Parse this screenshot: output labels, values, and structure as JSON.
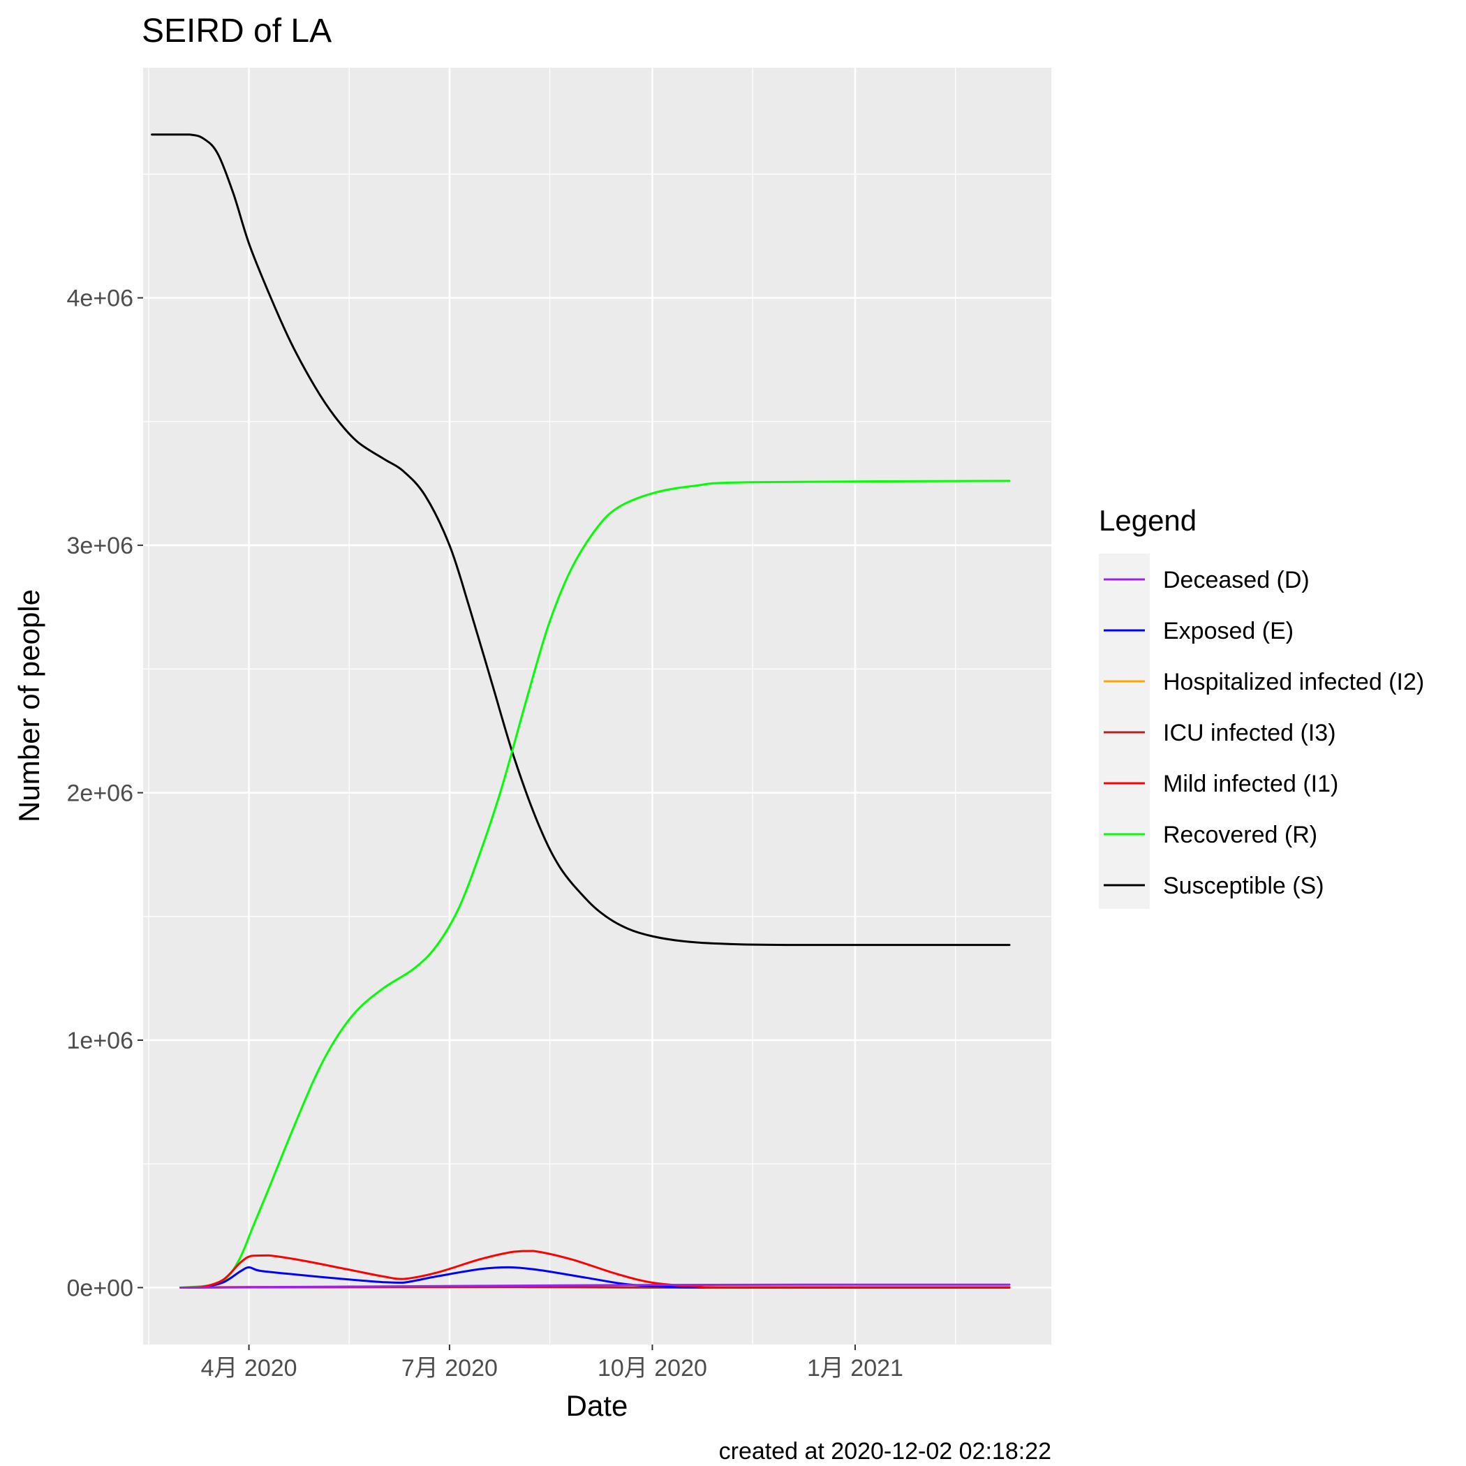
{
  "chart_data": {
    "type": "line",
    "title": "SEIRD of LA",
    "xlabel": "Date",
    "ylabel": "Number of people",
    "caption": "created at 2020-12-02 02:18:22",
    "x_ticks": [
      {
        "date": "2020-04-01",
        "label": "4月 2020"
      },
      {
        "date": "2020-07-01",
        "label": "7月 2020"
      },
      {
        "date": "2020-10-01",
        "label": "10月 2020"
      },
      {
        "date": "2021-01-01",
        "label": "1月 2021"
      }
    ],
    "xlim": [
      "2020-02-13",
      "2021-03-31"
    ],
    "y_ticks": [
      {
        "value": 0,
        "label": "0e+00"
      },
      {
        "value": 1000000,
        "label": "1e+06"
      },
      {
        "value": 2000000,
        "label": "2e+06"
      },
      {
        "value": 3000000,
        "label": "3e+06"
      },
      {
        "value": 4000000,
        "label": "4e+06"
      }
    ],
    "ylim": [
      -230000,
      4930000
    ],
    "grid": true,
    "legend": {
      "title": "Legend",
      "position": "right"
    },
    "series": [
      {
        "name": "Deceased (D)",
        "color": "#A020F0",
        "points": [
          [
            "2020-03-01",
            0
          ],
          [
            "2020-04-01",
            2000
          ],
          [
            "2020-06-01",
            5000
          ],
          [
            "2020-08-01",
            8000
          ],
          [
            "2020-10-01",
            11000
          ],
          [
            "2021-01-01",
            12000
          ],
          [
            "2021-03-12",
            12000
          ]
        ]
      },
      {
        "name": "Exposed (E)",
        "color": "#0000FF",
        "points": [
          [
            "2020-03-01",
            0
          ],
          [
            "2020-03-10",
            1000
          ],
          [
            "2020-03-20",
            20000
          ],
          [
            "2020-03-28",
            65000
          ],
          [
            "2020-04-01",
            82000
          ],
          [
            "2020-04-06",
            68000
          ],
          [
            "2020-04-20",
            55000
          ],
          [
            "2020-05-10",
            38000
          ],
          [
            "2020-06-01",
            22000
          ],
          [
            "2020-06-10",
            20000
          ],
          [
            "2020-06-25",
            45000
          ],
          [
            "2020-07-15",
            75000
          ],
          [
            "2020-07-28",
            82000
          ],
          [
            "2020-08-10",
            72000
          ],
          [
            "2020-09-01",
            40000
          ],
          [
            "2020-09-20",
            13000
          ],
          [
            "2020-10-10",
            3000
          ],
          [
            "2020-11-01",
            1000
          ],
          [
            "2021-03-12",
            1000
          ]
        ]
      },
      {
        "name": "Hospitalized infected (I2)",
        "color": "#FFA500",
        "points": [
          [
            "2020-03-01",
            0
          ],
          [
            "2020-04-01",
            3000
          ],
          [
            "2020-06-01",
            2000
          ],
          [
            "2020-08-01",
            5000
          ],
          [
            "2020-10-01",
            500
          ],
          [
            "2021-03-12",
            0
          ]
        ]
      },
      {
        "name": "ICU infected (I3)",
        "color": "#B22222",
        "points": [
          [
            "2020-03-01",
            0
          ],
          [
            "2020-04-01",
            1000
          ],
          [
            "2020-08-01",
            2000
          ],
          [
            "2020-10-01",
            300
          ],
          [
            "2021-03-12",
            0
          ]
        ]
      },
      {
        "name": "Mild infected (I1)",
        "color": "#FF0000",
        "points": [
          [
            "2020-03-01",
            0
          ],
          [
            "2020-03-10",
            2000
          ],
          [
            "2020-03-20",
            30000
          ],
          [
            "2020-03-28",
            100000
          ],
          [
            "2020-04-02",
            128000
          ],
          [
            "2020-04-10",
            130000
          ],
          [
            "2020-04-25",
            110000
          ],
          [
            "2020-05-15",
            75000
          ],
          [
            "2020-06-01",
            45000
          ],
          [
            "2020-06-10",
            35000
          ],
          [
            "2020-06-25",
            60000
          ],
          [
            "2020-07-15",
            115000
          ],
          [
            "2020-07-30",
            145000
          ],
          [
            "2020-08-08",
            148000
          ],
          [
            "2020-08-25",
            115000
          ],
          [
            "2020-09-15",
            55000
          ],
          [
            "2020-10-01",
            20000
          ],
          [
            "2020-10-20",
            5000
          ],
          [
            "2020-11-10",
            1000
          ],
          [
            "2021-03-12",
            500
          ]
        ]
      },
      {
        "name": "Recovered (R)",
        "color": "#00FF00",
        "points": [
          [
            "2020-03-01",
            0
          ],
          [
            "2020-03-15",
            10000
          ],
          [
            "2020-03-22",
            40000
          ],
          [
            "2020-03-28",
            120000
          ],
          [
            "2020-04-03",
            250000
          ],
          [
            "2020-04-10",
            400000
          ],
          [
            "2020-04-20",
            620000
          ],
          [
            "2020-05-01",
            850000
          ],
          [
            "2020-05-10",
            1000000
          ],
          [
            "2020-05-20",
            1120000
          ],
          [
            "2020-06-01",
            1210000
          ],
          [
            "2020-06-15",
            1290000
          ],
          [
            "2020-06-25",
            1380000
          ],
          [
            "2020-07-05",
            1530000
          ],
          [
            "2020-07-15",
            1760000
          ],
          [
            "2020-07-25",
            2030000
          ],
          [
            "2020-08-05",
            2380000
          ],
          [
            "2020-08-15",
            2680000
          ],
          [
            "2020-08-25",
            2900000
          ],
          [
            "2020-09-05",
            3060000
          ],
          [
            "2020-09-15",
            3150000
          ],
          [
            "2020-10-01",
            3210000
          ],
          [
            "2020-10-20",
            3240000
          ],
          [
            "2020-11-15",
            3255000
          ],
          [
            "2021-03-12",
            3260000
          ]
        ]
      },
      {
        "name": "Susceptible (S)",
        "color": "#000000",
        "points": [
          [
            "2020-02-17",
            4660000
          ],
          [
            "2020-03-05",
            4660000
          ],
          [
            "2020-03-12",
            4640000
          ],
          [
            "2020-03-18",
            4580000
          ],
          [
            "2020-03-25",
            4420000
          ],
          [
            "2020-04-01",
            4220000
          ],
          [
            "2020-04-10",
            4020000
          ],
          [
            "2020-04-20",
            3820000
          ],
          [
            "2020-05-01",
            3640000
          ],
          [
            "2020-05-10",
            3520000
          ],
          [
            "2020-05-20",
            3420000
          ],
          [
            "2020-06-01",
            3350000
          ],
          [
            "2020-06-10",
            3300000
          ],
          [
            "2020-06-20",
            3200000
          ],
          [
            "2020-07-01",
            3000000
          ],
          [
            "2020-07-10",
            2750000
          ],
          [
            "2020-07-20",
            2450000
          ],
          [
            "2020-07-30",
            2150000
          ],
          [
            "2020-08-10",
            1880000
          ],
          [
            "2020-08-20",
            1700000
          ],
          [
            "2020-09-01",
            1570000
          ],
          [
            "2020-09-10",
            1500000
          ],
          [
            "2020-09-20",
            1450000
          ],
          [
            "2020-10-01",
            1420000
          ],
          [
            "2020-10-15",
            1400000
          ],
          [
            "2020-11-01",
            1390000
          ],
          [
            "2020-12-01",
            1385000
          ],
          [
            "2021-03-12",
            1385000
          ]
        ]
      }
    ]
  }
}
